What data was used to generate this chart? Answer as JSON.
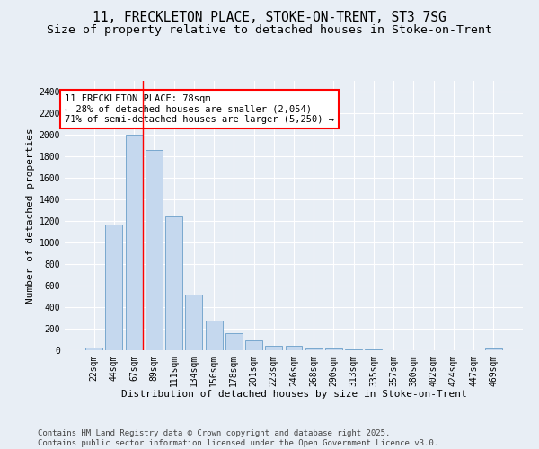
{
  "title_line1": "11, FRECKLETON PLACE, STOKE-ON-TRENT, ST3 7SG",
  "title_line2": "Size of property relative to detached houses in Stoke-on-Trent",
  "xlabel": "Distribution of detached houses by size in Stoke-on-Trent",
  "ylabel": "Number of detached properties",
  "bin_labels": [
    "22sqm",
    "44sqm",
    "67sqm",
    "89sqm",
    "111sqm",
    "134sqm",
    "156sqm",
    "178sqm",
    "201sqm",
    "223sqm",
    "246sqm",
    "268sqm",
    "290sqm",
    "313sqm",
    "335sqm",
    "357sqm",
    "380sqm",
    "402sqm",
    "424sqm",
    "447sqm",
    "469sqm"
  ],
  "bar_values": [
    25,
    1170,
    2000,
    1860,
    1245,
    520,
    275,
    155,
    90,
    45,
    40,
    20,
    15,
    5,
    5,
    3,
    2,
    2,
    1,
    1,
    20
  ],
  "bar_color": "#c5d8ee",
  "bar_edge_color": "#6a9ec9",
  "background_color": "#e8eef5",
  "annotation_text": "11 FRECKLETON PLACE: 78sqm\n← 28% of detached houses are smaller (2,054)\n71% of semi-detached houses are larger (5,250) →",
  "annotation_box_color": "white",
  "annotation_box_edge_color": "red",
  "ylim": [
    0,
    2500
  ],
  "yticks": [
    0,
    200,
    400,
    600,
    800,
    1000,
    1200,
    1400,
    1600,
    1800,
    2000,
    2200,
    2400
  ],
  "footer_line1": "Contains HM Land Registry data © Crown copyright and database right 2025.",
  "footer_line2": "Contains public sector information licensed under the Open Government Licence v3.0.",
  "title_fontsize": 10.5,
  "subtitle_fontsize": 9.5,
  "axis_label_fontsize": 8,
  "tick_fontsize": 7,
  "annotation_fontsize": 7.5,
  "footer_fontsize": 6.5
}
